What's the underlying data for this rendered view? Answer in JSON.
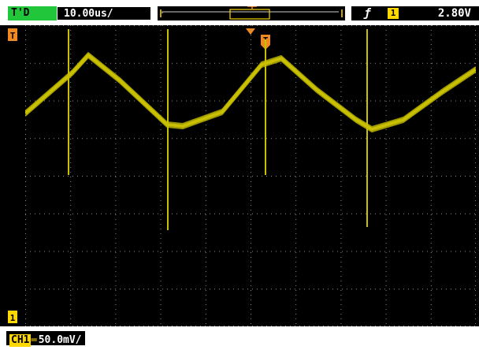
{
  "status": {
    "run_mode": "T'D"
  },
  "timebase": {
    "value": "10.00us/"
  },
  "trigger": {
    "source": "1",
    "level": "2.80V",
    "marker_label": "T"
  },
  "channel": {
    "name": "CH1",
    "scale": "50.0mV/"
  },
  "colors": {
    "channel1": "#c8c000",
    "grid": "#8a8a8a",
    "run": "#22c63a",
    "trigger": "#f08a1e"
  },
  "icons": {
    "trigger_edge": "rising-edge-icon",
    "coupling": "dc-coupling-icon"
  }
}
